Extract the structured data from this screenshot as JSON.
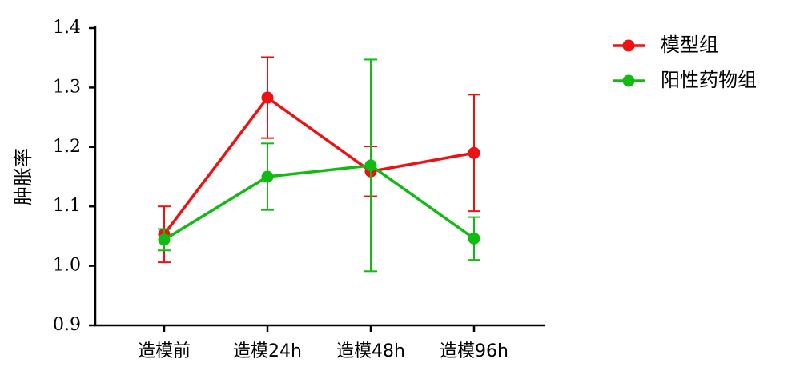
{
  "chart_data": {
    "type": "line",
    "y_label": "肿胀率",
    "categories": [
      "造模前",
      "造模24h",
      "造模48h",
      "造模96h"
    ],
    "series": [
      {
        "name": "模型组",
        "color": "#ee1111",
        "values": [
          1.053,
          1.283,
          1.159,
          1.19
        ],
        "errors": [
          0.047,
          0.068,
          0.042,
          0.098
        ]
      },
      {
        "name": "阳性药物组",
        "color": "#11bb11",
        "values": [
          1.044,
          1.15,
          1.169,
          1.046
        ],
        "errors": [
          0.018,
          0.056,
          0.178,
          0.036
        ]
      }
    ],
    "ylim": [
      0.9,
      1.4
    ],
    "yticks": [
      0.9,
      {
        "value": 1,
        "label": "1.0"
      },
      1.1,
      1.2,
      1.3,
      1.4
    ],
    "legend": "top-right"
  }
}
